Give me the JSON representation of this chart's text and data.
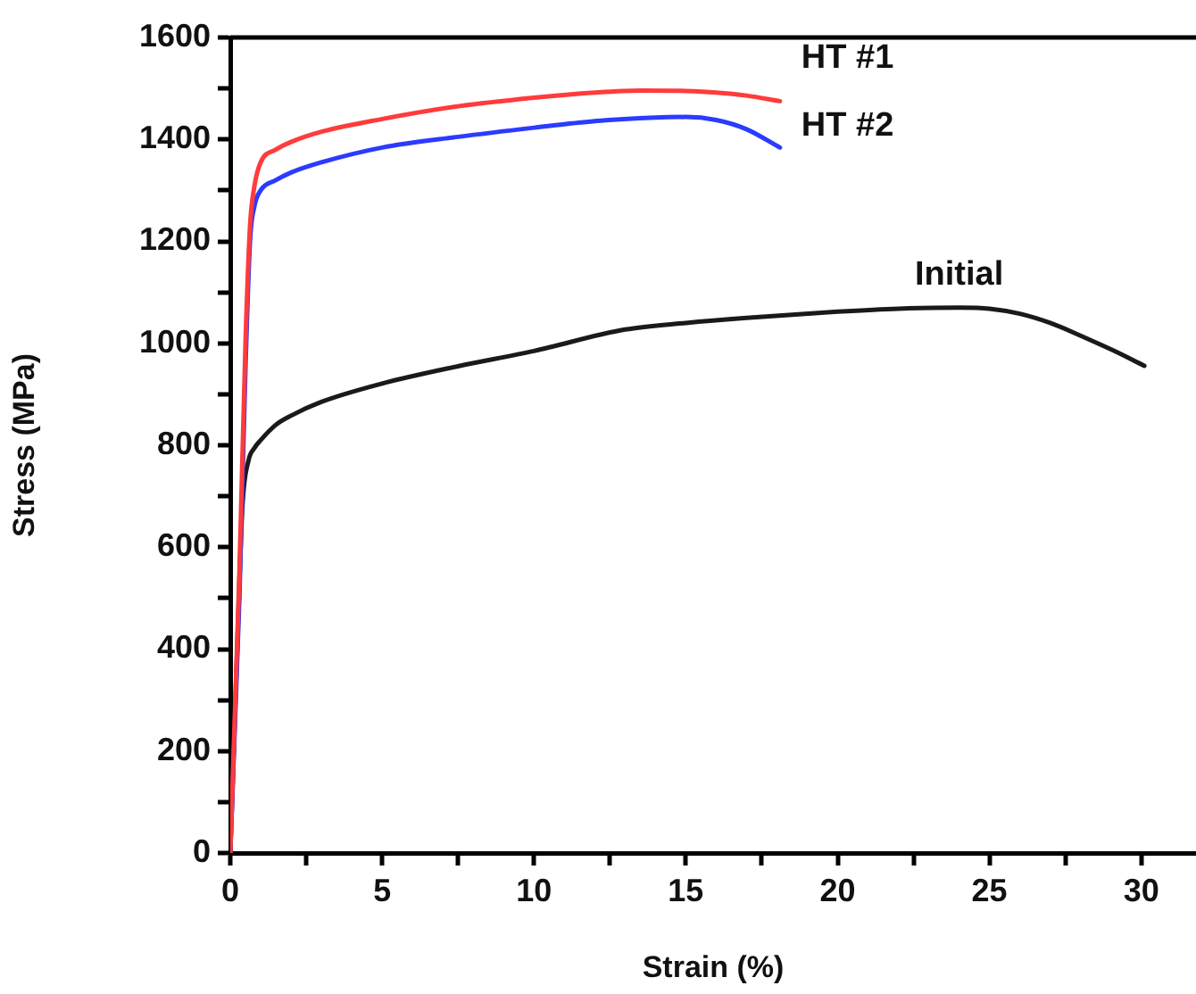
{
  "chart_data": {
    "type": "line",
    "xlabel": "Strain (%)",
    "ylabel": "Stress (MPa)",
    "xlim": [
      0,
      31.8
    ],
    "ylim": [
      0,
      1600
    ],
    "xticks": [
      0,
      {
        "value": 2.5,
        "label": null
      },
      5,
      {
        "value": 7.5,
        "label": null
      },
      10,
      {
        "value": 12.5,
        "label": null
      },
      15,
      {
        "value": 17.5,
        "label": null
      },
      20,
      {
        "value": 22.5,
        "label": null
      },
      25,
      {
        "value": 27.5,
        "label": null
      },
      30
    ],
    "yticks": [
      0,
      {
        "value": 100,
        "label": null
      },
      200,
      {
        "value": 300,
        "label": null
      },
      400,
      {
        "value": 500,
        "label": null
      },
      600,
      {
        "value": 700,
        "label": null
      },
      800,
      {
        "value": 900,
        "label": null
      },
      1000,
      {
        "value": 1100,
        "label": null
      },
      1200,
      {
        "value": 1300,
        "label": null
      },
      1400,
      {
        "value": 1500,
        "label": null
      },
      1600
    ],
    "grid": false,
    "legend": false,
    "marker": "none",
    "line_style": "solid",
    "series": [
      {
        "name": "HT #1",
        "color": "#ff3b3b",
        "x": [
          0,
          0.3,
          0.5,
          0.65,
          0.8,
          1,
          1.5,
          2,
          3,
          5,
          7.5,
          10,
          12,
          13.5,
          15,
          16,
          17,
          18.1
        ],
        "values": [
          0,
          550,
          1000,
          1230,
          1310,
          1355,
          1380,
          1395,
          1415,
          1440,
          1465,
          1482,
          1492,
          1496,
          1495,
          1492,
          1486,
          1475
        ]
      },
      {
        "name": "HT #2",
        "color": "#2b3bff",
        "x": [
          0,
          0.3,
          0.5,
          0.65,
          0.8,
          1,
          1.5,
          2,
          3,
          5,
          7.5,
          10,
          12,
          14,
          15,
          16,
          17,
          18.1
        ],
        "values": [
          0,
          500,
          950,
          1200,
          1270,
          1300,
          1320,
          1335,
          1355,
          1384,
          1405,
          1423,
          1436,
          1443,
          1444,
          1438,
          1420,
          1384
        ]
      },
      {
        "name": "Initial",
        "color": "#1a1a1a",
        "x": [
          0,
          0.2,
          0.4,
          0.6,
          0.8,
          1,
          1.5,
          2,
          3,
          5,
          7.5,
          10,
          13,
          15,
          17,
          20,
          22,
          24,
          25,
          26,
          27,
          28,
          29,
          30.1
        ],
        "values": [
          0,
          350,
          680,
          770,
          795,
          810,
          840,
          858,
          885,
          921,
          955,
          985,
          1027,
          1040,
          1050,
          1062,
          1068,
          1070,
          1068,
          1058,
          1040,
          1015,
          988,
          956
        ]
      }
    ]
  }
}
